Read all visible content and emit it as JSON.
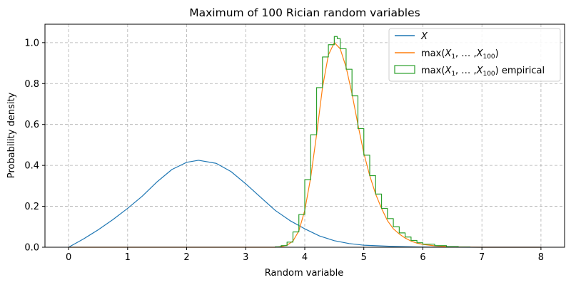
{
  "chart_data": {
    "type": "line",
    "title": "Maximum of 100 Rician random variables",
    "xlabel": "Random variable",
    "ylabel": "Probability density",
    "xlim": [
      -0.4,
      8.4
    ],
    "ylim": [
      0,
      1.09
    ],
    "xticks": [
      "0",
      "1",
      "2",
      "3",
      "4",
      "5",
      "6",
      "7",
      "8"
    ],
    "yticks": [
      "0.0",
      "0.2",
      "0.4",
      "0.6",
      "0.8",
      "1.0"
    ],
    "grid": true,
    "legend_position": "top-right",
    "series": [
      {
        "name": "X",
        "kind": "line",
        "color": "#1f77b4",
        "x": [
          0,
          0.25,
          0.5,
          0.75,
          1.0,
          1.25,
          1.5,
          1.75,
          2.0,
          2.2,
          2.5,
          2.75,
          3.0,
          3.25,
          3.5,
          3.75,
          4.0,
          4.25,
          4.5,
          4.75,
          5.0,
          5.5,
          6.0,
          6.5,
          7.0,
          8.0
        ],
        "y": [
          0,
          0.04,
          0.085,
          0.135,
          0.19,
          0.25,
          0.32,
          0.38,
          0.415,
          0.425,
          0.41,
          0.37,
          0.31,
          0.245,
          0.18,
          0.13,
          0.09,
          0.055,
          0.032,
          0.018,
          0.01,
          0.004,
          0.001,
          0.0003,
          0.0001,
          0
        ]
      },
      {
        "name": "max(X_1, …, X_100)",
        "kind": "line",
        "color": "#ff7f0e",
        "x": [
          0,
          3.5,
          3.6,
          3.7,
          3.8,
          3.9,
          4.0,
          4.1,
          4.2,
          4.3,
          4.4,
          4.5,
          4.6,
          4.7,
          4.8,
          4.9,
          5.0,
          5.1,
          5.2,
          5.3,
          5.4,
          5.5,
          5.6,
          5.7,
          5.8,
          5.9,
          6.0,
          6.2,
          6.4,
          6.6,
          6.8,
          7.0,
          8.0
        ],
        "y": [
          0,
          0,
          0.003,
          0.01,
          0.03,
          0.08,
          0.18,
          0.34,
          0.55,
          0.78,
          0.94,
          1.0,
          0.97,
          0.88,
          0.75,
          0.6,
          0.46,
          0.35,
          0.26,
          0.19,
          0.13,
          0.09,
          0.065,
          0.045,
          0.03,
          0.02,
          0.014,
          0.007,
          0.003,
          0.0015,
          0.0005,
          0.0001,
          0
        ]
      },
      {
        "name": "max(X_1, …, X_100) empirical",
        "kind": "step-histogram",
        "color": "#2ca02c",
        "x": [
          3.5,
          3.6,
          3.7,
          3.8,
          3.9,
          4.0,
          4.1,
          4.2,
          4.3,
          4.4,
          4.5,
          4.55,
          4.6,
          4.7,
          4.8,
          4.9,
          5.0,
          5.1,
          5.2,
          5.3,
          5.4,
          5.5,
          5.6,
          5.7,
          5.8,
          5.9,
          6.0,
          6.2,
          6.4,
          6.6,
          6.8
        ],
        "y": [
          0.002,
          0.008,
          0.025,
          0.075,
          0.16,
          0.33,
          0.55,
          0.78,
          0.93,
          0.99,
          1.03,
          1.02,
          0.97,
          0.87,
          0.74,
          0.58,
          0.45,
          0.35,
          0.26,
          0.19,
          0.14,
          0.1,
          0.07,
          0.05,
          0.033,
          0.022,
          0.015,
          0.008,
          0.003,
          0.001,
          0
        ]
      }
    ]
  }
}
